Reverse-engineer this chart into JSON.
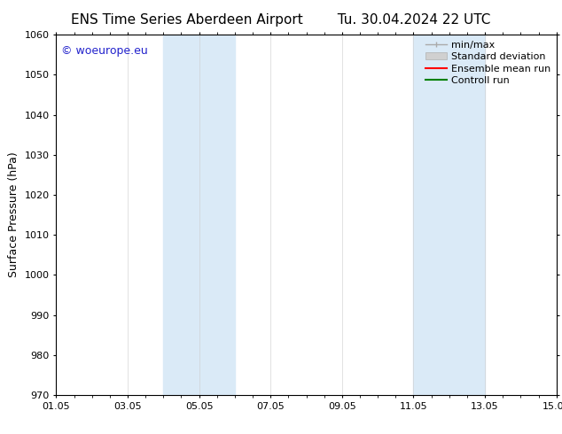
{
  "title": "ENS Time Series Aberdeen Airport",
  "title2": "Tu. 30.04.2024 22 UTC",
  "ylabel": "Surface Pressure (hPa)",
  "ylim": [
    970,
    1060
  ],
  "yticks": [
    970,
    980,
    990,
    1000,
    1010,
    1020,
    1030,
    1040,
    1050,
    1060
  ],
  "xlim": [
    0,
    14
  ],
  "xtick_labels": [
    "01.05",
    "03.05",
    "05.05",
    "07.05",
    "09.05",
    "11.05",
    "13.05",
    "15.05"
  ],
  "xtick_positions": [
    0,
    2,
    4,
    6,
    8,
    10,
    12,
    14
  ],
  "shaded_regions": [
    {
      "x_start": 3,
      "x_end": 5
    },
    {
      "x_start": 10,
      "x_end": 12
    }
  ],
  "shaded_color": "#daeaf7",
  "watermark": "© woeurope.eu",
  "watermark_color": "#2222cc",
  "legend_items": [
    {
      "label": "min/max",
      "color": "#aaaaaa",
      "lw": 1.0
    },
    {
      "label": "Standard deviation",
      "color": "#cccccc",
      "lw": 6
    },
    {
      "label": "Ensemble mean run",
      "color": "#ff0000",
      "lw": 1.5
    },
    {
      "label": "Controll run",
      "color": "#008000",
      "lw": 1.5
    }
  ],
  "bg_color": "#ffffff",
  "font_size_title": 11,
  "font_size_ticks": 8,
  "font_size_ylabel": 9,
  "font_size_watermark": 9,
  "font_size_legend": 8
}
